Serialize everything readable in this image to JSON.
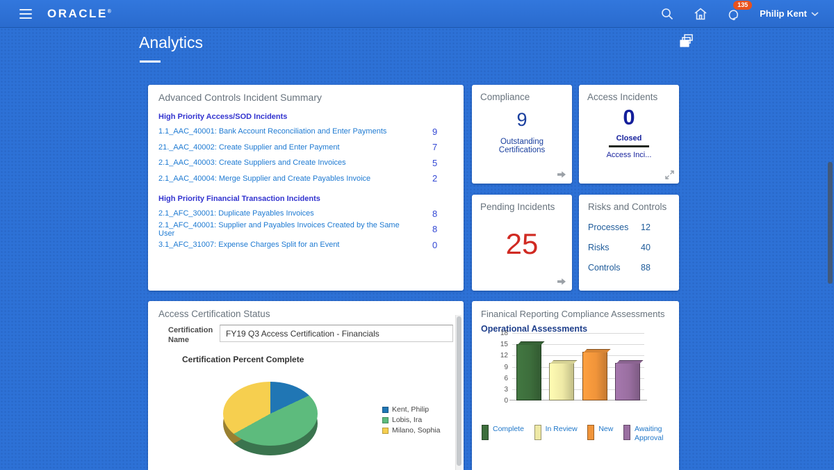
{
  "topbar": {
    "brand": "ORACLE",
    "user_name": "Philip Kent",
    "notification_count": "135"
  },
  "page": {
    "title": "Analytics"
  },
  "incident_summary": {
    "title": "Advanced Controls Incident Summary",
    "sections": [
      {
        "heading": "High Priority Access/SOD Incidents",
        "rows": [
          {
            "label": "1.1_AAC_40001: Bank Account Reconciliation and Enter Payments",
            "value": "9"
          },
          {
            "label": "21._AAC_40002: Create Supplier and Enter Payment",
            "value": "7"
          },
          {
            "label": "2.1_AAC_40003: Create Suppliers and Create Invoices",
            "value": "5"
          },
          {
            "label": "2.1_AAC_40004: Merge Supplier and Create Payables Invoice",
            "value": "2"
          }
        ]
      },
      {
        "heading": "High Priority Financial Transaction Incidents",
        "rows": [
          {
            "label": "2.1_AFC_30001: Duplicate Payables Invoices",
            "value": "8"
          },
          {
            "label": "2.1_AFC_40001: Supplier and Payables Invoices Created by the Same User",
            "value": "8"
          },
          {
            "label": "3.1_AFC_31007: Expense Charges Split for an Event",
            "value": "0"
          }
        ]
      }
    ]
  },
  "compliance": {
    "title": "Compliance",
    "value": "9",
    "label": "Outstanding Certifications"
  },
  "access_incidents": {
    "title": "Access Incidents",
    "value": "0",
    "status": "Closed",
    "sublabel": "Access Inci..."
  },
  "pending_incidents": {
    "title": "Pending Incidents",
    "value": "25",
    "value_color": "#d02a22"
  },
  "risks_and_controls": {
    "title": "Risks and Controls",
    "rows": [
      {
        "label": "Processes",
        "value": "12"
      },
      {
        "label": "Risks",
        "value": "40"
      },
      {
        "label": "Controls",
        "value": "88"
      }
    ]
  },
  "access_certification": {
    "title": "Access Certification Status",
    "field_label": "Certification Name",
    "field_value": "FY19 Q3 Access Certification - Financials",
    "chart_title": "Certification Percent Complete"
  },
  "frc_assessments": {
    "title": "Finanical Reporting Compliance Assessments",
    "chart_title": "Operational Assessments"
  },
  "chart_data": [
    {
      "type": "pie",
      "title": "Certification Percent Complete",
      "labels": [
        "Kent, Philip",
        "Lobis, Ira",
        "Milano, Sophia"
      ],
      "values": [
        18,
        49,
        33
      ],
      "unit": "percent (estimated from slice angles, no data labels shown)",
      "colors": [
        "#2076b4",
        "#5dbb7d",
        "#f6cf4f"
      ],
      "legend_position": "right",
      "style": "3d-pie"
    },
    {
      "type": "bar",
      "title": "Operational Assessments",
      "categories": [
        "Complete",
        "In Review",
        "New",
        "Awaiting Approval"
      ],
      "values": [
        15,
        10,
        13,
        10
      ],
      "colors": [
        "#3d6e3c",
        "#eee9a6",
        "#f0943a",
        "#9a6fa1"
      ],
      "ylim": [
        0,
        18
      ],
      "yticks": [
        0,
        3,
        6,
        9,
        12,
        15,
        18
      ],
      "grid": true,
      "legend_position": "bottom",
      "style": "3d-bar"
    }
  ]
}
